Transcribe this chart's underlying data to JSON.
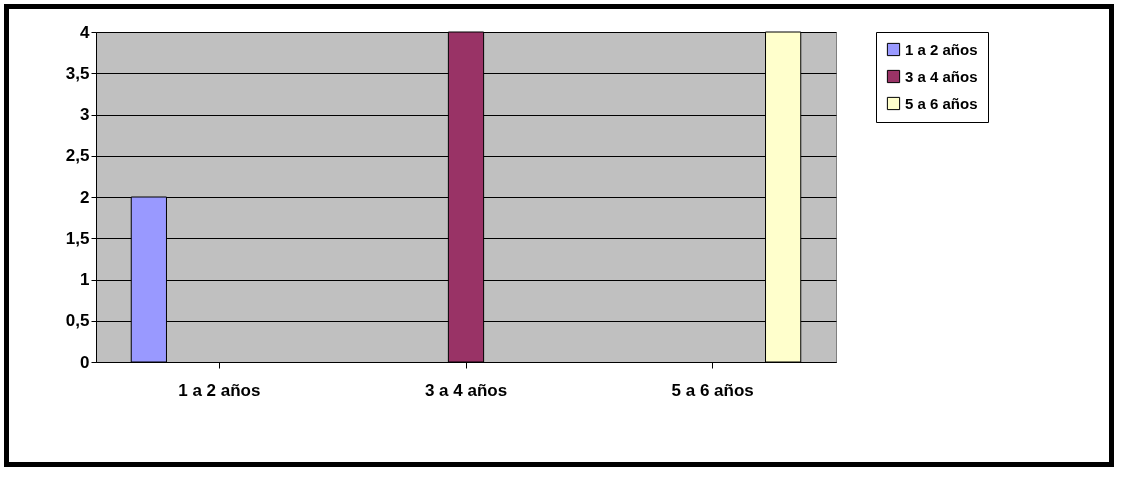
{
  "chart_data": {
    "type": "bar",
    "categories": [
      "1 a 2 años",
      "3 a 4 años",
      "5 a 6 años"
    ],
    "series": [
      {
        "name": "1 a 2 años",
        "color": "#9999ff",
        "values": [
          2,
          null,
          null
        ]
      },
      {
        "name": "3 a 4 años",
        "color": "#993366",
        "values": [
          null,
          4,
          null
        ]
      },
      {
        "name": "5 a 6 años",
        "color": "#ffffcc",
        "values": [
          null,
          null,
          4
        ]
      }
    ],
    "ylim": [
      0,
      4
    ],
    "yticks": [
      0,
      {
        "value": 0.5,
        "label": "0,5"
      },
      1,
      {
        "value": 1.5,
        "label": "1,5"
      },
      2,
      {
        "value": 2.5,
        "label": "2,5"
      },
      3,
      {
        "value": 3.5,
        "label": "3,5"
      },
      4
    ],
    "grid": "y",
    "legend": "right"
  }
}
